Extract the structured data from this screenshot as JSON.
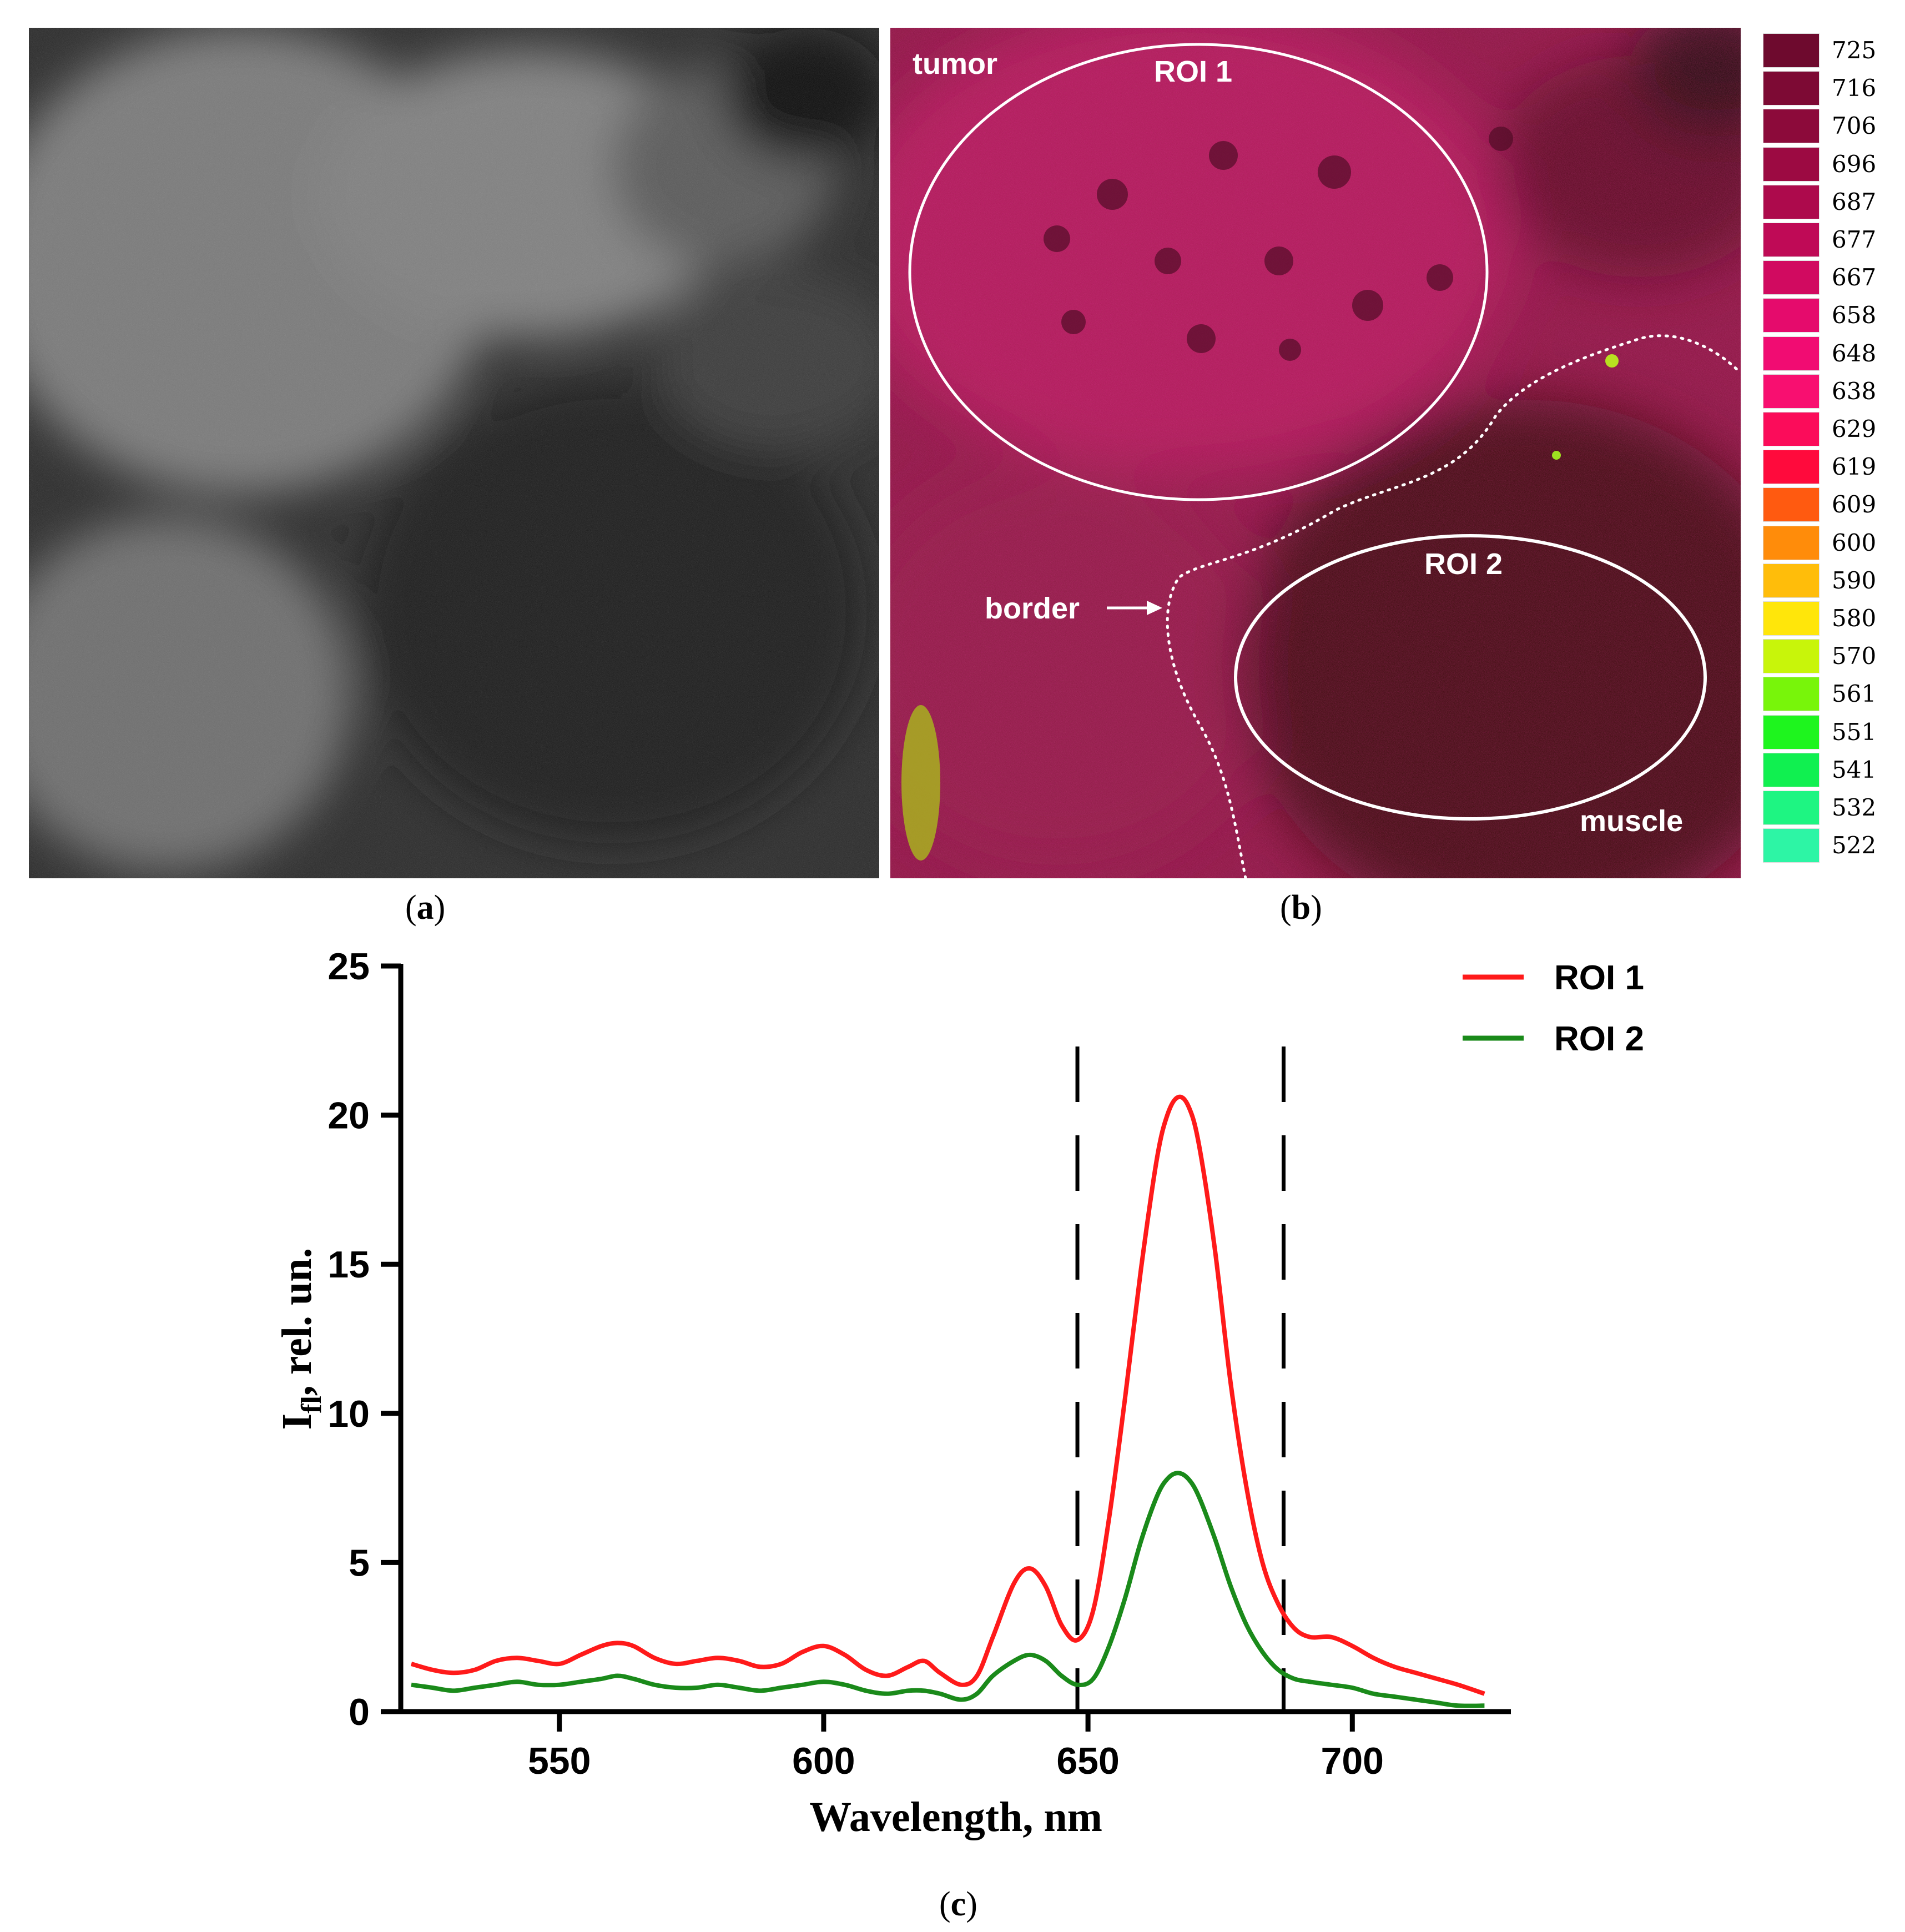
{
  "panel_a": {
    "caption_letter": "a"
  },
  "panel_b": {
    "caption_letter": "b",
    "labels": {
      "tumor": "tumor",
      "roi1": "ROI 1",
      "roi2": "ROI 2",
      "border": "border",
      "muscle": "muscle"
    }
  },
  "colorbar": {
    "entries": [
      {
        "label": "725",
        "color": "#6e0a2e"
      },
      {
        "label": "716",
        "color": "#7d0a34"
      },
      {
        "label": "706",
        "color": "#8c0a3a"
      },
      {
        "label": "696",
        "color": "#9c0a42"
      },
      {
        "label": "687",
        "color": "#ad0a4c"
      },
      {
        "label": "677",
        "color": "#bf0a56"
      },
      {
        "label": "667",
        "color": "#d10a60"
      },
      {
        "label": "658",
        "color": "#e50b6c"
      },
      {
        "label": "648",
        "color": "#f10c72"
      },
      {
        "label": "638",
        "color": "#f80f70"
      },
      {
        "label": "629",
        "color": "#fb0c5a"
      },
      {
        "label": "619",
        "color": "#ff0a3c"
      },
      {
        "label": "609",
        "color": "#ff5a10"
      },
      {
        "label": "600",
        "color": "#ff8c0a"
      },
      {
        "label": "590",
        "color": "#ffbd0a"
      },
      {
        "label": "580",
        "color": "#ffe60a"
      },
      {
        "label": "570",
        "color": "#c8f50a"
      },
      {
        "label": "561",
        "color": "#78f50a"
      },
      {
        "label": "551",
        "color": "#1ef51e"
      },
      {
        "label": "541",
        "color": "#10f050"
      },
      {
        "label": "532",
        "color": "#1ef582"
      },
      {
        "label": "522",
        "color": "#2df5a5"
      }
    ]
  },
  "panel_c": {
    "caption_letter": "c"
  },
  "chart_data": {
    "type": "line",
    "xlabel": "Wavelength, nm",
    "ylabel_main": "I",
    "ylabel_sub": "fl",
    "ylabel_rest": ", rel. un.",
    "xlim": [
      520,
      730
    ],
    "ylim": [
      0,
      25
    ],
    "xticks": [
      550,
      600,
      650,
      700
    ],
    "yticks": [
      0,
      5,
      10,
      15,
      20,
      25
    ],
    "vlines_dashed": [
      648,
      687
    ],
    "legend_position": "top-right",
    "series": [
      {
        "name": "ROI 1",
        "color": "#ff1a1a",
        "x": [
          522,
          526,
          530,
          534,
          538,
          542,
          546,
          550,
          554,
          558,
          561,
          564,
          568,
          572,
          576,
          580,
          584,
          588,
          592,
          596,
          600,
          604,
          608,
          612,
          616,
          619,
          622,
          626,
          629,
          632,
          636,
          639,
          642,
          645,
          648,
          651,
          654,
          657,
          660,
          663,
          665,
          667,
          669,
          671,
          674,
          677,
          680,
          683,
          686,
          689,
          692,
          696,
          700,
          704,
          708,
          712,
          716,
          720,
          725
        ],
        "y": [
          1.6,
          1.4,
          1.3,
          1.4,
          1.7,
          1.8,
          1.7,
          1.6,
          1.9,
          2.2,
          2.3,
          2.2,
          1.8,
          1.6,
          1.7,
          1.8,
          1.7,
          1.5,
          1.6,
          2.0,
          2.2,
          1.9,
          1.4,
          1.2,
          1.5,
          1.7,
          1.3,
          0.9,
          1.2,
          2.5,
          4.3,
          4.8,
          4.2,
          2.9,
          2.4,
          3.4,
          6.5,
          10.5,
          14.8,
          18.5,
          20.0,
          20.6,
          20.3,
          19.0,
          15.5,
          11.0,
          7.5,
          5.0,
          3.6,
          2.8,
          2.5,
          2.5,
          2.2,
          1.8,
          1.5,
          1.3,
          1.1,
          0.9,
          0.6
        ]
      },
      {
        "name": "ROI 2",
        "color": "#1a8a1a",
        "x": [
          522,
          526,
          530,
          534,
          538,
          542,
          546,
          550,
          554,
          558,
          561,
          564,
          568,
          572,
          576,
          580,
          584,
          588,
          592,
          596,
          600,
          604,
          608,
          612,
          616,
          619,
          622,
          626,
          629,
          632,
          636,
          639,
          642,
          645,
          648,
          651,
          654,
          657,
          660,
          663,
          665,
          667,
          669,
          671,
          674,
          677,
          680,
          683,
          686,
          689,
          692,
          696,
          700,
          704,
          708,
          712,
          716,
          720,
          725
        ],
        "y": [
          0.9,
          0.8,
          0.7,
          0.8,
          0.9,
          1.0,
          0.9,
          0.9,
          1.0,
          1.1,
          1.2,
          1.1,
          0.9,
          0.8,
          0.8,
          0.9,
          0.8,
          0.7,
          0.8,
          0.9,
          1.0,
          0.9,
          0.7,
          0.6,
          0.7,
          0.7,
          0.6,
          0.4,
          0.6,
          1.2,
          1.7,
          1.9,
          1.7,
          1.2,
          0.9,
          1.1,
          2.2,
          3.8,
          5.7,
          7.2,
          7.8,
          8.0,
          7.8,
          7.2,
          5.8,
          4.2,
          2.9,
          2.0,
          1.4,
          1.1,
          1.0,
          0.9,
          0.8,
          0.6,
          0.5,
          0.4,
          0.3,
          0.2,
          0.2
        ]
      }
    ]
  }
}
